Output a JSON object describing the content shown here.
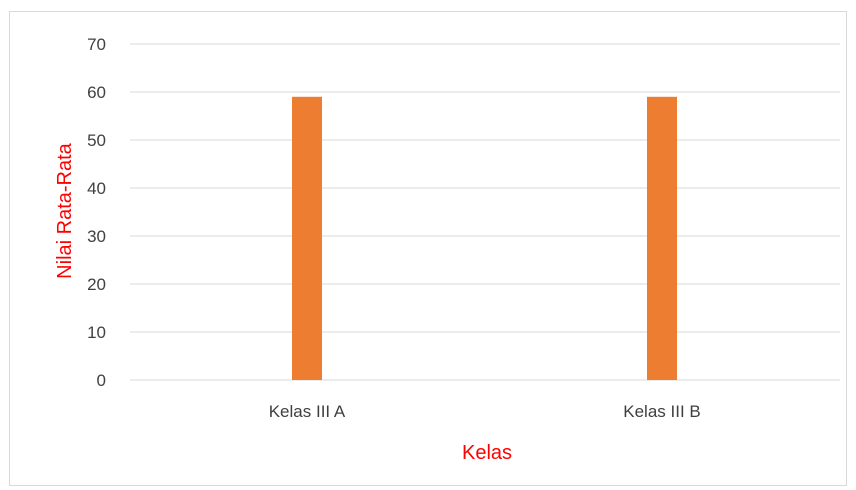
{
  "chart_data": {
    "type": "bar",
    "title": "",
    "xlabel": "Kelas",
    "ylabel": "Nilai Rata-Rata",
    "categories": [
      "Kelas III A",
      "Kelas III B"
    ],
    "series": [
      {
        "values": [
          59,
          59
        ]
      }
    ],
    "ylim": [
      0,
      70
    ],
    "yticks": [
      "0",
      "10",
      "20",
      "30",
      "40",
      "50",
      "60",
      "70"
    ],
    "grid": true,
    "legend": "none",
    "colors": {
      "bar": "#ed7d31",
      "axis_title": "#ff0000",
      "tick_text": "#404040",
      "gridline": "#d9d9d9"
    }
  }
}
